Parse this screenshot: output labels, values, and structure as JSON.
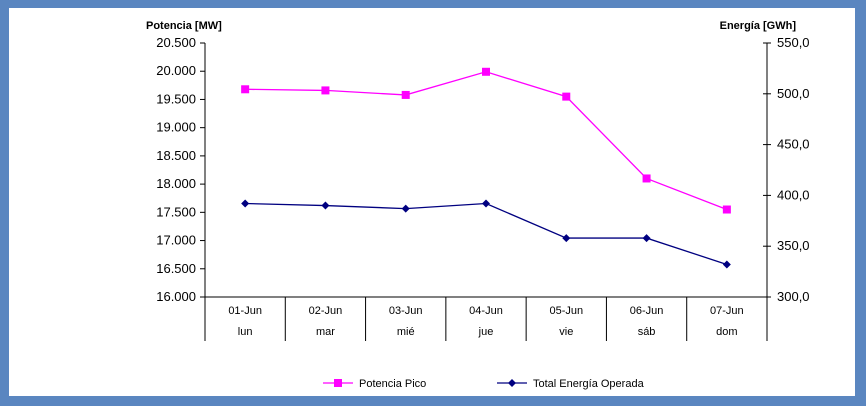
{
  "chart_data": {
    "type": "line",
    "categories": [
      "01-Jun",
      "02-Jun",
      "03-Jun",
      "04-Jun",
      "05-Jun",
      "06-Jun",
      "07-Jun"
    ],
    "days": [
      "lun",
      "mar",
      "mié",
      "jue",
      "vie",
      "sáb",
      "dom"
    ],
    "left_axis": {
      "title": "Potencia [MW]",
      "ylim": [
        16000,
        20500
      ],
      "ticks": [
        "16.000",
        "16.500",
        "17.000",
        "17.500",
        "18.000",
        "18.500",
        "19.000",
        "19.500",
        "20.000",
        "20.500"
      ]
    },
    "right_axis": {
      "title": "Energía [GWh]",
      "ylim": [
        300,
        550
      ],
      "ticks": [
        "300,0",
        "350,0",
        "400,0",
        "450,0",
        "500,0",
        "550,0"
      ]
    },
    "series": [
      {
        "name": "Potencia Pico",
        "axis": "left",
        "color": "#ff00ff",
        "marker": "square",
        "values": [
          19680,
          19660,
          19580,
          19990,
          19550,
          18100,
          17550
        ]
      },
      {
        "name": "Total Energía Operada",
        "axis": "right",
        "color": "#000080",
        "marker": "diamond",
        "values": [
          392,
          390,
          387,
          392,
          358,
          358,
          332
        ]
      }
    ],
    "grid": false,
    "legend": "bottom"
  }
}
